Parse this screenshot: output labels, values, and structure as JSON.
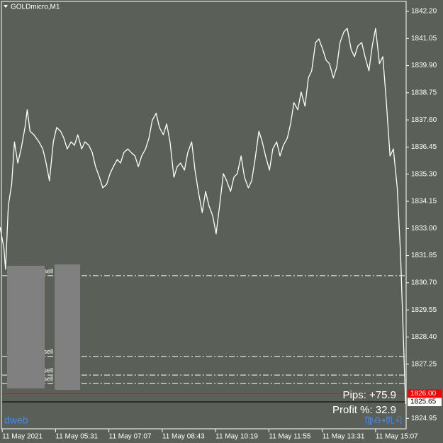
{
  "window_title": "GOLDmicro,M1",
  "chart_data": {
    "type": "line",
    "color": "#ffffff",
    "grid": false,
    "x": [
      -4,
      3,
      6,
      11,
      17,
      22,
      28,
      34,
      41,
      45,
      50,
      57,
      66,
      73,
      79,
      85,
      92,
      98,
      105,
      111,
      117,
      124,
      130,
      136,
      143,
      149,
      156,
      162,
      168,
      175,
      181,
      188,
      194,
      200,
      207,
      213,
      219,
      226,
      232,
      239,
      245,
      251,
      258,
      264,
      270,
      277,
      283,
      290,
      296,
      302,
      309,
      315,
      321,
      328,
      334,
      341,
      347,
      353,
      360,
      366,
      372,
      379,
      385,
      392,
      398,
      404,
      411,
      417,
      423,
      430,
      436,
      443,
      449,
      455,
      462,
      468,
      474,
      481,
      487,
      494,
      500,
      506,
      513,
      519,
      525,
      532,
      538,
      545,
      551,
      557,
      564,
      570,
      577,
      583,
      589,
      596,
      602,
      608,
      615,
      621,
      628,
      634,
      640,
      647,
      653,
      660,
      666,
      672,
      679,
      685,
      691,
      698,
      704,
      711,
      717,
      723,
      726
    ],
    "values": [
      1833.07,
      1832.17,
      1831.27,
      1833.97,
      1834.87,
      1836.67,
      1835.77,
      1836.37,
      1837.28,
      1838.03,
      1837.12,
      1836.97,
      1836.67,
      1836.37,
      1835.77,
      1835.02,
      1836.67,
      1837.28,
      1837.12,
      1836.82,
      1836.37,
      1836.67,
      1836.52,
      1836.97,
      1836.37,
      1836.67,
      1836.52,
      1836.22,
      1835.62,
      1835.17,
      1834.72,
      1834.87,
      1835.32,
      1835.62,
      1835.92,
      1835.77,
      1836.22,
      1836.37,
      1836.22,
      1836.07,
      1835.62,
      1836.07,
      1836.37,
      1836.82,
      1837.58,
      1837.88,
      1837.28,
      1836.97,
      1837.43,
      1836.67,
      1835.17,
      1835.62,
      1835.77,
      1835.47,
      1836.22,
      1836.67,
      1835.47,
      1834.57,
      1833.67,
      1834.57,
      1833.97,
      1833.52,
      1832.77,
      1834.12,
      1835.32,
      1835.02,
      1834.57,
      1835.17,
      1835.32,
      1836.07,
      1835.17,
      1834.72,
      1835.02,
      1835.92,
      1837.12,
      1836.67,
      1836.07,
      1835.47,
      1836.37,
      1836.67,
      1836.07,
      1836.52,
      1836.82,
      1837.43,
      1838.33,
      1838.03,
      1838.78,
      1838.18,
      1839.38,
      1839.68,
      1840.88,
      1841.03,
      1840.58,
      1840.13,
      1839.98,
      1839.38,
      1839.83,
      1840.88,
      1841.33,
      1841.48,
      1840.58,
      1840.28,
      1840.73,
      1840.88,
      1840.28,
      1839.68,
      1840.73,
      1841.48,
      1839.98,
      1840.28,
      1838.48,
      1836.07,
      1836.37,
      1834.72,
      1831.87,
      1827.67,
      1825.56
    ],
    "xlim": [
      -4,
      727
    ],
    "ylim": [
      1824.51,
      1842.68
    ],
    "xticks": [
      {
        "value": 0,
        "label": "11 May 2021"
      },
      {
        "value": 96,
        "label": "11 May 05:31"
      },
      {
        "value": 192,
        "label": "11 May 07:07"
      },
      {
        "value": 288,
        "label": "11 May 08:43"
      },
      {
        "value": 384,
        "label": "11 May 10:19"
      },
      {
        "value": 480,
        "label": "11 May 11:55"
      },
      {
        "value": 576,
        "label": "11 May 13:31"
      },
      {
        "value": 672,
        "label": "11 May 15:07"
      }
    ],
    "yticks": [
      {
        "value": 1842.2,
        "label": "1842.20"
      },
      1841.05,
      {
        "value": 1839.9,
        "label": "1839.90"
      },
      1838.75,
      {
        "value": 1837.6,
        "label": "1837.60"
      },
      1836.45,
      {
        "value": 1835.3,
        "label": "1835.30"
      },
      1834.15,
      {
        "value": 1833,
        "label": "1833.00"
      },
      1831.85,
      {
        "value": 1830.7,
        "label": "1830.70"
      },
      1829.55,
      {
        "value": 1828.4,
        "label": "1828.40"
      },
      1827.25,
      1824.95
    ],
    "order_lines": [
      {
        "value": 1831.0,
        "label": "sell"
      },
      {
        "value": 1827.58,
        "label": "sell"
      },
      {
        "value": 1826.79,
        "label": "sell"
      },
      {
        "value": 1826.43,
        "label": "sell"
      }
    ],
    "price_lines": [
      {
        "value": 1826.0,
        "label": "1826.00",
        "color": "#ff0000"
      },
      {
        "value": 1825.65,
        "label": "1825.65",
        "color": "#000000"
      }
    ]
  },
  "stats": {
    "pips": "Pips: +75.9",
    "profit": "Profit %: 32.9"
  },
  "brand": "dweb",
  "symbols": "♍♎•♏♌"
}
